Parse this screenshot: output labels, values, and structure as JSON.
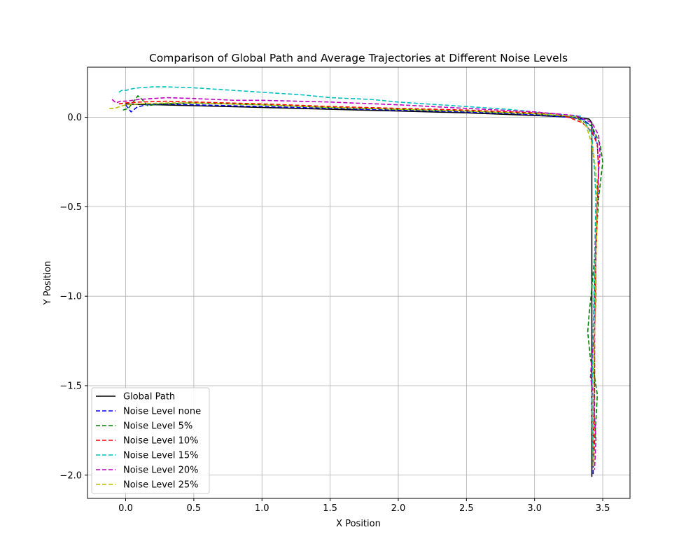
{
  "chart_data": {
    "type": "line",
    "title": "Comparison of Global Path and Average Trajectories at Different Noise Levels",
    "xlabel": "X Position",
    "ylabel": "Y Position",
    "xlim": [
      -0.28,
      3.7
    ],
    "ylim": [
      -2.13,
      0.28
    ],
    "xticks": [
      0.0,
      0.5,
      1.0,
      1.5,
      2.0,
      2.5,
      3.0,
      3.5
    ],
    "xtick_labels": [
      "0.0",
      "0.5",
      "1.0",
      "1.5",
      "2.0",
      "2.5",
      "3.0",
      "3.5"
    ],
    "yticks": [
      0.0,
      -0.5,
      -1.0,
      -1.5,
      -2.0
    ],
    "ytick_labels": [
      "0.0",
      "−0.5",
      "−1.0",
      "−1.5",
      "−2.0"
    ],
    "grid": true,
    "legend_position": "lower-left",
    "series": [
      {
        "name": "Global Path",
        "color": "#000000",
        "dash": "solid",
        "x": [
          0.0,
          0.1,
          0.25,
          0.5,
          1.0,
          1.5,
          2.0,
          2.5,
          3.0,
          3.3,
          3.4,
          3.42,
          3.42,
          3.42,
          3.42
        ],
        "y": [
          0.075,
          0.072,
          0.07,
          0.065,
          0.055,
          0.045,
          0.035,
          0.025,
          0.01,
          0.0,
          -0.01,
          -0.03,
          -0.5,
          -1.5,
          -2.01
        ]
      },
      {
        "name": "Noise Level none",
        "color": "#0000ff",
        "dash": "dashed",
        "x": [
          0.0,
          0.02,
          0.04,
          0.08,
          0.15,
          0.3,
          0.5,
          1.0,
          1.5,
          2.0,
          2.5,
          3.0,
          3.25,
          3.35,
          3.42,
          3.46,
          3.47,
          3.46,
          3.45,
          3.44,
          3.44,
          3.43,
          3.43
        ],
        "y": [
          0.07,
          0.05,
          0.03,
          0.055,
          0.07,
          0.075,
          0.07,
          0.06,
          0.05,
          0.04,
          0.03,
          0.015,
          0.0,
          -0.01,
          -0.05,
          -0.15,
          -0.3,
          -0.5,
          -0.7,
          -1.0,
          -1.5,
          -1.8,
          -2.0
        ]
      },
      {
        "name": "Noise Level 5%",
        "color": "#008000",
        "dash": "dashed",
        "x": [
          -0.02,
          0.02,
          0.06,
          0.09,
          0.12,
          0.16,
          0.25,
          0.5,
          1.0,
          1.5,
          2.0,
          2.5,
          3.0,
          3.3,
          3.42,
          3.48,
          3.5,
          3.47,
          3.45,
          3.42,
          3.4,
          3.39,
          3.41,
          3.44,
          3.46,
          3.45,
          3.43
        ],
        "y": [
          0.04,
          0.05,
          0.09,
          0.12,
          0.1,
          0.065,
          0.075,
          0.08,
          0.07,
          0.055,
          0.045,
          0.035,
          0.02,
          0.0,
          -0.05,
          -0.15,
          -0.25,
          -0.45,
          -0.7,
          -0.95,
          -1.1,
          -1.2,
          -1.35,
          -1.45,
          -1.55,
          -1.7,
          -1.95
        ]
      },
      {
        "name": "Noise Level 10%",
        "color": "#ff0000",
        "dash": "dashed",
        "x": [
          -0.05,
          0.0,
          0.1,
          0.3,
          0.5,
          1.0,
          1.5,
          2.0,
          2.5,
          3.0,
          3.15,
          3.25,
          3.35,
          3.42,
          3.46,
          3.47,
          3.46,
          3.45,
          3.44,
          3.44,
          3.43
        ],
        "y": [
          0.075,
          0.08,
          0.085,
          0.09,
          0.085,
          0.075,
          0.06,
          0.05,
          0.04,
          0.025,
          0.02,
          0.0,
          -0.03,
          -0.08,
          -0.15,
          -0.3,
          -0.5,
          -0.8,
          -1.2,
          -1.6,
          -1.95
        ]
      },
      {
        "name": "Noise Level 15%",
        "color": "#00bfbf",
        "dash": "dashed",
        "x": [
          -0.05,
          -0.03,
          0.0,
          0.05,
          0.1,
          0.2,
          0.3,
          0.5,
          0.8,
          1.0,
          1.3,
          1.5,
          1.8,
          2.0,
          2.2,
          2.5,
          2.8,
          3.0,
          3.2,
          3.35,
          3.42,
          3.43,
          3.44,
          3.45,
          3.44,
          3.43,
          3.42,
          3.43
        ],
        "y": [
          0.14,
          0.15,
          0.15,
          0.16,
          0.165,
          0.17,
          0.17,
          0.165,
          0.15,
          0.14,
          0.125,
          0.11,
          0.1,
          0.085,
          0.075,
          0.06,
          0.045,
          0.03,
          0.015,
          0.005,
          -0.1,
          -0.2,
          -0.3,
          -0.45,
          -0.8,
          -1.2,
          -1.6,
          -1.95
        ]
      },
      {
        "name": "Noise Level 20%",
        "color": "#bf00bf",
        "dash": "dashed",
        "x": [
          -0.1,
          -0.07,
          -0.04,
          0.0,
          0.1,
          0.3,
          0.5,
          0.8,
          1.0,
          1.5,
          2.0,
          2.5,
          3.0,
          3.3,
          3.42,
          3.47,
          3.48,
          3.46,
          3.45,
          3.45,
          3.44,
          3.42,
          3.41,
          3.43,
          3.45,
          3.44
        ],
        "y": [
          0.1,
          0.08,
          0.09,
          0.09,
          0.1,
          0.11,
          0.105,
          0.095,
          0.095,
          0.085,
          0.07,
          0.05,
          0.03,
          0.01,
          -0.03,
          -0.1,
          -0.2,
          -0.4,
          -0.7,
          -1.0,
          -1.2,
          -1.35,
          -1.45,
          -1.55,
          -1.8,
          -1.97
        ]
      },
      {
        "name": "Noise Level 25%",
        "color": "#bfbf00",
        "dash": "dashed",
        "x": [
          -0.12,
          -0.08,
          -0.04,
          0.0,
          0.1,
          0.3,
          0.5,
          1.0,
          1.5,
          2.0,
          2.5,
          3.0,
          3.3,
          3.38,
          3.42,
          3.45,
          3.46,
          3.45,
          3.44,
          3.43,
          3.43
        ],
        "y": [
          0.05,
          0.05,
          0.06,
          0.07,
          0.075,
          0.08,
          0.08,
          0.07,
          0.055,
          0.045,
          0.035,
          0.02,
          0.005,
          -0.05,
          -0.15,
          -0.3,
          -0.5,
          -0.8,
          -1.2,
          -1.6,
          -1.95
        ]
      }
    ]
  }
}
